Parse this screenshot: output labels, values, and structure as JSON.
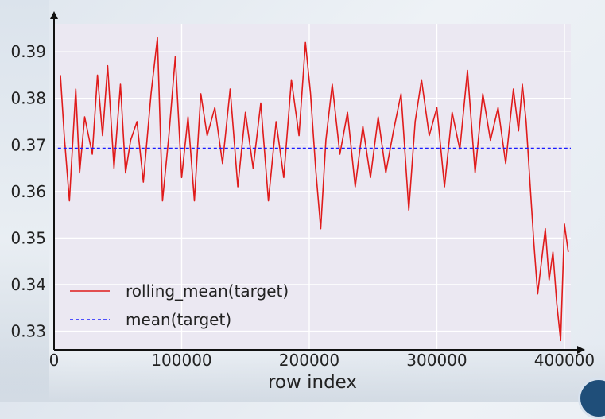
{
  "chart_data": {
    "type": "line",
    "xlabel": "row index",
    "ylabel": "",
    "xlim": [
      0,
      405000
    ],
    "ylim": [
      0.326,
      0.396
    ],
    "xticks": [
      0,
      100000,
      200000,
      300000,
      400000
    ],
    "xtick_labels": [
      "0",
      "100000",
      "200000",
      "300000",
      "400000"
    ],
    "yticks": [
      0.33,
      0.34,
      0.35,
      0.36,
      0.37,
      0.38,
      0.39
    ],
    "ytick_labels": [
      "0.33",
      "0.34",
      "0.35",
      "0.36",
      "0.37",
      "0.38",
      "0.39"
    ],
    "grid": true,
    "legend": "lower-left",
    "series": [
      {
        "name": "rolling_mean(target)",
        "style": "solid",
        "color": "#e01b1b",
        "x": [
          5000,
          8000,
          12000,
          17000,
          20000,
          24000,
          30000,
          34000,
          38000,
          42000,
          47000,
          52000,
          56000,
          60000,
          65000,
          70000,
          76000,
          81000,
          85000,
          90000,
          95000,
          100000,
          105000,
          110000,
          115000,
          120000,
          126000,
          132000,
          138000,
          144000,
          150000,
          156000,
          162000,
          168000,
          174000,
          180000,
          186000,
          192000,
          197000,
          201000,
          205000,
          209000,
          213000,
          218000,
          224000,
          230000,
          236000,
          242000,
          248000,
          254000,
          260000,
          266000,
          272000,
          278000,
          283000,
          288000,
          294000,
          300000,
          306000,
          312000,
          318000,
          324000,
          330000,
          336000,
          342000,
          348000,
          354000,
          360000,
          364000,
          367000,
          370000,
          373000,
          376000,
          379000,
          382000,
          385000,
          388000,
          391000,
          394000,
          397000,
          400000,
          403000
        ],
        "y": [
          0.385,
          0.372,
          0.358,
          0.382,
          0.364,
          0.376,
          0.368,
          0.385,
          0.372,
          0.387,
          0.365,
          0.383,
          0.364,
          0.371,
          0.375,
          0.362,
          0.381,
          0.393,
          0.358,
          0.372,
          0.389,
          0.363,
          0.376,
          0.358,
          0.381,
          0.372,
          0.378,
          0.366,
          0.382,
          0.361,
          0.377,
          0.365,
          0.379,
          0.358,
          0.375,
          0.363,
          0.384,
          0.372,
          0.392,
          0.381,
          0.365,
          0.352,
          0.371,
          0.383,
          0.368,
          0.377,
          0.361,
          0.374,
          0.363,
          0.376,
          0.364,
          0.373,
          0.381,
          0.356,
          0.375,
          0.384,
          0.372,
          0.378,
          0.361,
          0.377,
          0.369,
          0.386,
          0.364,
          0.381,
          0.371,
          0.378,
          0.366,
          0.382,
          0.373,
          0.383,
          0.375,
          0.362,
          0.349,
          0.338,
          0.345,
          0.352,
          0.341,
          0.347,
          0.336,
          0.328,
          0.353,
          0.347
        ]
      },
      {
        "name": "mean(target)",
        "style": "dashed",
        "color": "#1a1aff",
        "x": [
          3000,
          405000
        ],
        "y": [
          0.3693,
          0.3693
        ]
      }
    ]
  }
}
